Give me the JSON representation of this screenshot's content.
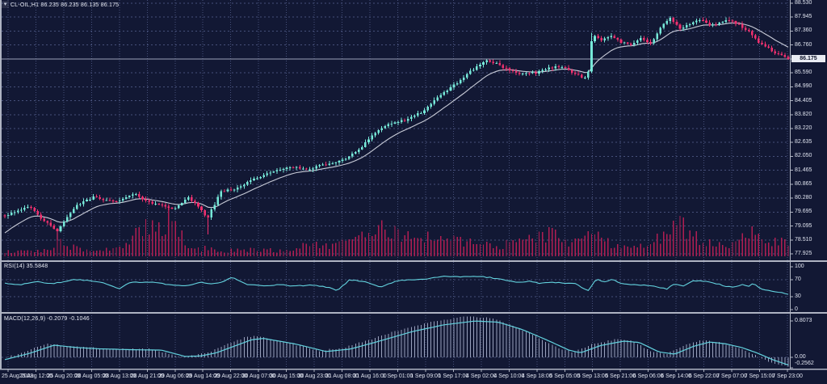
{
  "header": {
    "title": "CL-OIL,H1 86.235 86.235 86.135 86.175",
    "symbol": "CL-OIL",
    "timeframe": "H1"
  },
  "icons": {
    "chart_menu": "▾"
  },
  "colors": {
    "background": "#121834",
    "grid": "#46507a",
    "bull": "#76e8d8",
    "bear": "#f0306e",
    "volume": "#b01e52",
    "ma_line": "#c9ccd8",
    "indicator_line": "#63d2de",
    "macd_histogram": "#98a0bc",
    "current_price_line": "#9aa0b8",
    "separator": "#aeb3c2",
    "axis_text": "#dfe3ef",
    "price_tag_bg": "#e9ecf3",
    "price_tag_text": "#0c1128"
  },
  "price_axis": {
    "ticks": [
      "88.530",
      "87.945",
      "87.360",
      "86.760",
      "86.175",
      "85.590",
      "84.990",
      "84.405",
      "83.820",
      "83.220",
      "82.635",
      "82.050",
      "81.465",
      "80.865",
      "80.280",
      "79.695",
      "79.095",
      "78.510",
      "77.925"
    ],
    "current_index": 4,
    "current": "86.175"
  },
  "time_axis": {
    "ticks": [
      "25 Aug 2023",
      "25 Aug 12:00",
      "25 Aug 20:00",
      "28 Aug 05:00",
      "28 Aug 13:00",
      "28 Aug 21:00",
      "29 Aug 06:00",
      "29 Aug 14:00",
      "29 Aug 22:00",
      "30 Aug 07:00",
      "30 Aug 15:00",
      "30 Aug 23:00",
      "31 Aug 08:00",
      "31 Aug 16:00",
      "1 Sep 01:00",
      "1 Sep 09:00",
      "1 Sep 17:00",
      "4 Sep 02:00",
      "4 Sep 10:00",
      "4 Sep 18:00",
      "5 Sep 05:00",
      "5 Sep 13:00",
      "5 Sep 21:00",
      "6 Sep 06:00",
      "6 Sep 14:00",
      "6 Sep 22:00",
      "7 Sep 07:00",
      "7 Sep 15:00",
      "7 Sep 23:00"
    ]
  },
  "panels": {
    "rsi": {
      "label": "RSI(14) 35.5848",
      "levels": [
        "100",
        "70",
        "30",
        "0"
      ]
    },
    "macd": {
      "label": "MACD(12,26,9) -0.2079 -0.1046",
      "levels": [
        "0.8073",
        "0.00",
        "-0.2562"
      ]
    }
  },
  "chart_data": {
    "type": "candlestick",
    "symbol": "CL-OIL",
    "timeframe": "H1",
    "last_candle": {
      "open": 86.235,
      "high": 86.235,
      "low": 86.135,
      "close": 86.175
    },
    "current_price": 86.175,
    "price_range": [
      77.925,
      88.53
    ],
    "visible_time_range": [
      "25 Aug 2023",
      "7 Sep 23:00"
    ],
    "n_candles": 240,
    "close_path_keypoints": [
      [
        0,
        79.55
      ],
      [
        0.03,
        79.95
      ],
      [
        0.048,
        79.35
      ],
      [
        0.068,
        78.9
      ],
      [
        0.09,
        79.95
      ],
      [
        0.115,
        80.35
      ],
      [
        0.14,
        80.1
      ],
      [
        0.165,
        80.45
      ],
      [
        0.19,
        80.05
      ],
      [
        0.215,
        79.85
      ],
      [
        0.235,
        80.3
      ],
      [
        0.252,
        79.75
      ],
      [
        0.258,
        79.4
      ],
      [
        0.276,
        80.55
      ],
      [
        0.295,
        80.7
      ],
      [
        0.318,
        81.1
      ],
      [
        0.34,
        81.35
      ],
      [
        0.36,
        81.6
      ],
      [
        0.385,
        81.5
      ],
      [
        0.408,
        81.7
      ],
      [
        0.43,
        81.85
      ],
      [
        0.452,
        82.35
      ],
      [
        0.472,
        83.05
      ],
      [
        0.492,
        83.45
      ],
      [
        0.515,
        83.6
      ],
      [
        0.535,
        84.0
      ],
      [
        0.552,
        84.5
      ],
      [
        0.57,
        85.0
      ],
      [
        0.588,
        85.45
      ],
      [
        0.602,
        85.85
      ],
      [
        0.615,
        86.1
      ],
      [
        0.63,
        85.95
      ],
      [
        0.645,
        85.65
      ],
      [
        0.66,
        85.5
      ],
      [
        0.678,
        85.6
      ],
      [
        0.695,
        85.8
      ],
      [
        0.712,
        85.85
      ],
      [
        0.725,
        85.6
      ],
      [
        0.738,
        85.4
      ],
      [
        0.744,
        85.45
      ],
      [
        0.75,
        87.25
      ],
      [
        0.755,
        87.1
      ],
      [
        0.762,
        86.95
      ],
      [
        0.775,
        87.15
      ],
      [
        0.788,
        86.85
      ],
      [
        0.8,
        86.75
      ],
      [
        0.812,
        87.05
      ],
      [
        0.825,
        86.85
      ],
      [
        0.838,
        87.55
      ],
      [
        0.85,
        87.9
      ],
      [
        0.862,
        87.45
      ],
      [
        0.875,
        87.65
      ],
      [
        0.888,
        87.85
      ],
      [
        0.9,
        87.55
      ],
      [
        0.912,
        87.7
      ],
      [
        0.925,
        87.85
      ],
      [
        0.938,
        87.6
      ],
      [
        0.95,
        87.3
      ],
      [
        0.962,
        86.9
      ],
      [
        0.975,
        86.6
      ],
      [
        0.988,
        86.35
      ],
      [
        1,
        86.175
      ]
    ],
    "long_lower_wicks": [
      [
        0.068,
        0.3
      ],
      [
        0.258,
        0.6
      ]
    ],
    "long_upper_wicks": [
      [
        0.75,
        0.3
      ]
    ],
    "volume_envelope_keypoints": [
      [
        0,
        0.1
      ],
      [
        0.05,
        0.12
      ],
      [
        0.07,
        0.3
      ],
      [
        0.1,
        0.12
      ],
      [
        0.15,
        0.2
      ],
      [
        0.17,
        0.55
      ],
      [
        0.185,
        0.75
      ],
      [
        0.2,
        0.5
      ],
      [
        0.213,
        1.0
      ],
      [
        0.225,
        0.45
      ],
      [
        0.24,
        0.2
      ],
      [
        0.28,
        0.12
      ],
      [
        0.32,
        0.15
      ],
      [
        0.36,
        0.12
      ],
      [
        0.39,
        0.3
      ],
      [
        0.42,
        0.2
      ],
      [
        0.46,
        0.55
      ],
      [
        0.48,
        0.6
      ],
      [
        0.51,
        0.5
      ],
      [
        0.535,
        0.35
      ],
      [
        0.55,
        0.55
      ],
      [
        0.57,
        0.35
      ],
      [
        0.6,
        0.3
      ],
      [
        0.63,
        0.2
      ],
      [
        0.65,
        0.35
      ],
      [
        0.68,
        0.45
      ],
      [
        0.7,
        0.5
      ],
      [
        0.72,
        0.3
      ],
      [
        0.745,
        0.55
      ],
      [
        0.76,
        0.4
      ],
      [
        0.78,
        0.25
      ],
      [
        0.8,
        0.2
      ],
      [
        0.83,
        0.35
      ],
      [
        0.85,
        0.6
      ],
      [
        0.865,
        0.7
      ],
      [
        0.88,
        0.45
      ],
      [
        0.9,
        0.3
      ],
      [
        0.92,
        0.25
      ],
      [
        0.94,
        0.45
      ],
      [
        0.955,
        0.5
      ],
      [
        0.97,
        0.3
      ],
      [
        0.985,
        0.35
      ],
      [
        1,
        0.25
      ]
    ],
    "indicators": [
      {
        "type": "RSI",
        "period": 14,
        "last": 35.5848,
        "levels": [
          100,
          70,
          30,
          0
        ],
        "keypoints": [
          [
            0,
            62
          ],
          [
            0.02,
            58
          ],
          [
            0.04,
            65
          ],
          [
            0.06,
            60
          ],
          [
            0.09,
            70
          ],
          [
            0.11,
            68
          ],
          [
            0.13,
            60
          ],
          [
            0.145,
            48
          ],
          [
            0.16,
            63
          ],
          [
            0.19,
            65
          ],
          [
            0.21,
            58
          ],
          [
            0.23,
            56
          ],
          [
            0.25,
            63
          ],
          [
            0.27,
            60
          ],
          [
            0.29,
            75
          ],
          [
            0.31,
            58
          ],
          [
            0.33,
            56
          ],
          [
            0.35,
            58
          ],
          [
            0.37,
            55
          ],
          [
            0.39,
            57
          ],
          [
            0.41,
            53
          ],
          [
            0.425,
            45
          ],
          [
            0.44,
            70
          ],
          [
            0.46,
            65
          ],
          [
            0.48,
            52
          ],
          [
            0.5,
            67
          ],
          [
            0.52,
            70
          ],
          [
            0.54,
            72
          ],
          [
            0.56,
            78
          ],
          [
            0.58,
            76
          ],
          [
            0.6,
            78
          ],
          [
            0.62,
            75
          ],
          [
            0.64,
            68
          ],
          [
            0.655,
            63
          ],
          [
            0.67,
            66
          ],
          [
            0.685,
            61
          ],
          [
            0.7,
            64
          ],
          [
            0.715,
            62
          ],
          [
            0.73,
            60
          ],
          [
            0.74,
            48
          ],
          [
            0.745,
            45
          ],
          [
            0.755,
            72
          ],
          [
            0.765,
            65
          ],
          [
            0.775,
            70
          ],
          [
            0.79,
            60
          ],
          [
            0.8,
            58
          ],
          [
            0.815,
            57
          ],
          [
            0.83,
            55
          ],
          [
            0.845,
            48
          ],
          [
            0.855,
            60
          ],
          [
            0.865,
            55
          ],
          [
            0.88,
            68
          ],
          [
            0.895,
            66
          ],
          [
            0.91,
            60
          ],
          [
            0.92,
            55
          ],
          [
            0.93,
            52
          ],
          [
            0.94,
            58
          ],
          [
            0.95,
            55
          ],
          [
            0.955,
            62
          ],
          [
            0.965,
            48
          ],
          [
            0.975,
            45
          ],
          [
            0.985,
            42
          ],
          [
            1,
            35.58
          ]
        ]
      },
      {
        "type": "MACD",
        "params": [
          12,
          26,
          9
        ],
        "last_main": -0.2079,
        "last_signal": -0.1046,
        "scale_range": [
          -0.2562,
          0.8073
        ],
        "signal_keypoints": [
          [
            0,
            -0.05
          ],
          [
            0.03,
            0.08
          ],
          [
            0.063,
            0.27
          ],
          [
            0.09,
            0.22
          ],
          [
            0.12,
            0.19
          ],
          [
            0.16,
            0.17
          ],
          [
            0.2,
            0.16
          ],
          [
            0.23,
            0.02
          ],
          [
            0.25,
            0.03
          ],
          [
            0.27,
            0.1
          ],
          [
            0.315,
            0.39
          ],
          [
            0.33,
            0.42
          ],
          [
            0.37,
            0.3
          ],
          [
            0.41,
            0.13
          ],
          [
            0.44,
            0.18
          ],
          [
            0.47,
            0.32
          ],
          [
            0.52,
            0.57
          ],
          [
            0.56,
            0.72
          ],
          [
            0.6,
            0.807
          ],
          [
            0.63,
            0.78
          ],
          [
            0.66,
            0.62
          ],
          [
            0.69,
            0.4
          ],
          [
            0.72,
            0.16
          ],
          [
            0.735,
            0.1
          ],
          [
            0.76,
            0.26
          ],
          [
            0.79,
            0.36
          ],
          [
            0.81,
            0.33
          ],
          [
            0.835,
            0.12
          ],
          [
            0.855,
            0.07
          ],
          [
            0.88,
            0.25
          ],
          [
            0.9,
            0.34
          ],
          [
            0.92,
            0.3
          ],
          [
            0.94,
            0.22
          ],
          [
            0.96,
            0.1
          ],
          [
            0.98,
            -0.05
          ],
          [
            1,
            -0.17
          ]
        ]
      }
    ]
  }
}
